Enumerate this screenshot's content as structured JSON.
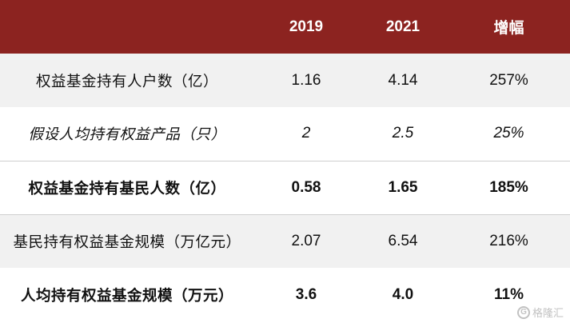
{
  "table": {
    "headers": [
      "",
      "2019",
      "2021",
      "增幅"
    ],
    "header_bg": "#8c2320",
    "rows": [
      {
        "label": "权益基金持有人户数（亿）",
        "v2019": "1.16",
        "v2021": "4.14",
        "growth": "257%",
        "style": "normal"
      },
      {
        "label": "假设人均持有权益产品（只）",
        "v2019": "2",
        "v2021": "2.5",
        "growth": "25%",
        "style": "italic"
      },
      {
        "label": "权益基金持有基民人数（亿）",
        "v2019": "0.58",
        "v2021": "1.65",
        "growth": "185%",
        "style": "bold"
      },
      {
        "label": "基民持有权益基金规模（万亿元）",
        "v2019": "2.07",
        "v2021": "6.54",
        "growth": "216%",
        "style": "normal"
      },
      {
        "label": "人均持有权益基金规模（万元）",
        "v2019": "3.6",
        "v2021": "4.0",
        "growth": "11%",
        "style": "bold"
      }
    ]
  },
  "watermark": {
    "text": "格隆汇",
    "logo_icon": "gelonghui-logo-icon"
  }
}
